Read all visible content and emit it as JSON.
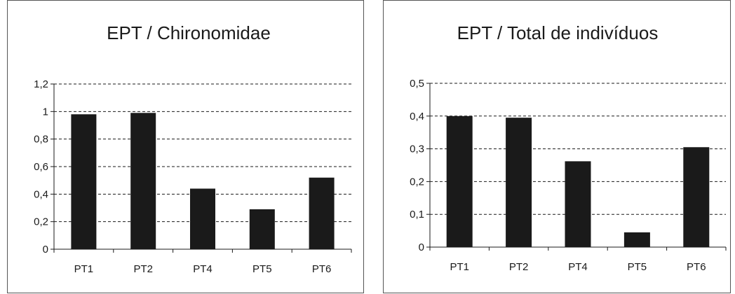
{
  "chart_data": [
    {
      "type": "bar",
      "title": "EPT / Chironomidae",
      "xlabel": "",
      "ylabel": "",
      "categories": [
        "PT1",
        "PT2",
        "PT4",
        "PT5",
        "PT6"
      ],
      "values": [
        0.98,
        0.99,
        0.44,
        0.29,
        0.52
      ],
      "ylim": [
        0,
        1.2
      ],
      "yticks": [
        0,
        0.2,
        0.4,
        0.6,
        0.8,
        1,
        1.2
      ],
      "ytick_labels": [
        "0",
        "0,2",
        "0,4",
        "0,6",
        "0,8",
        "1",
        "1,2"
      ],
      "grid": "horizontal dashed",
      "bar_color": "#1a1a1a"
    },
    {
      "type": "bar",
      "title": "EPT / Total de indivíduos",
      "xlabel": "",
      "ylabel": "",
      "categories": [
        "PT1",
        "PT2",
        "PT4",
        "PT5",
        "PT6"
      ],
      "values": [
        0.4,
        0.395,
        0.262,
        0.045,
        0.305
      ],
      "ylim": [
        0,
        0.5
      ],
      "yticks": [
        0,
        0.1,
        0.2,
        0.3,
        0.4,
        0.5
      ],
      "ytick_labels": [
        "0",
        "0,1",
        "0,2",
        "0,3",
        "0,4",
        "0,5"
      ],
      "grid": "horizontal dashed",
      "bar_color": "#1a1a1a"
    }
  ]
}
